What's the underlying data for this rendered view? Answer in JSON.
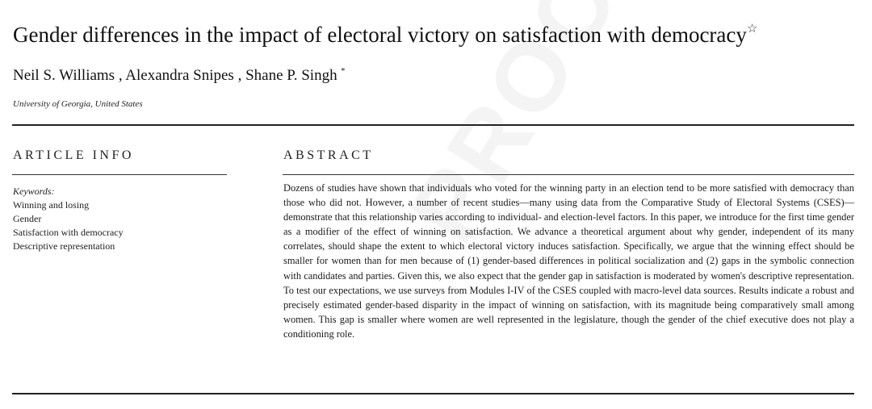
{
  "watermark": "PROOF",
  "title": "Gender differences in the impact of electoral victory on satisfaction with democracy",
  "title_mark": "☆",
  "authors": "Neil S. Williams , Alexandra Snipes , Shane P. Singh",
  "author_mark": "*",
  "affiliation": "University of Georgia, United States",
  "article_info": {
    "heading": "ARTICLE INFO",
    "keywords_label": "Keywords:",
    "keywords": [
      "Winning and losing",
      "Gender",
      "Satisfaction with democracy",
      "Descriptive representation"
    ]
  },
  "abstract": {
    "heading": "ABSTRACT",
    "text": "Dozens of studies have shown that individuals who voted for the winning party in an election tend to be more satisfied with democracy than those who did not. However, a number of recent studies—many using data from the Comparative Study of Electoral Systems (CSES)—demonstrate that this relationship varies according to individual- and election-level factors. In this paper, we introduce for the first time gender as a modifier of the effect of winning on satisfaction. We advance a theoretical argument about why gender, independent of its many correlates, should shape the extent to which electoral victory induces satisfaction. Specifically, we argue that the winning effect should be smaller for women than for men because of (1) gender-based differences in political socialization and (2) gaps in the symbolic connection with candidates and parties. Given this, we also expect that the gender gap in satisfaction is moderated by women's descriptive representation. To test our expectations, we use surveys from Modules I-IV of the CSES coupled with macro-level data sources. Results indicate a robust and precisely estimated gender-based disparity in the impact of winning on satisfaction, with its magnitude being comparatively small among women. This gap is smaller where women are well represented in the legislature, though the gender of the chief executive does not play a conditioning role."
  }
}
